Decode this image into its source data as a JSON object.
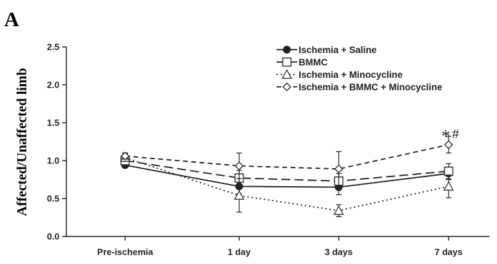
{
  "panel_label": "A",
  "chart_data": {
    "type": "line",
    "title": "",
    "xlabel": "",
    "ylabel": "Affected/Unaffected limb",
    "categories": [
      "Pre-ischemia",
      "1 day",
      "3 days",
      "7 days"
    ],
    "ylim": [
      0,
      2.5
    ],
    "yticks": [
      "0.0",
      "0.5",
      "1.0",
      "1.5",
      "2.0",
      "2.5"
    ],
    "grid": false,
    "legend_position": "top-right",
    "series": [
      {
        "name": "Ischemia + Saline",
        "marker": "filled-circle",
        "line": "solid",
        "values": [
          0.94,
          0.66,
          0.65,
          0.83
        ],
        "errors": [
          0.03,
          0.1,
          0.1,
          0.08
        ]
      },
      {
        "name": "BMMC",
        "marker": "open-square",
        "line": "long-dash",
        "values": [
          1.0,
          0.77,
          0.73,
          0.86
        ],
        "errors": [
          0.04,
          0.1,
          0.1,
          0.1
        ]
      },
      {
        "name": "Ischemia + Minocycline",
        "marker": "open-triangle",
        "line": "dotted",
        "values": [
          1.04,
          0.54,
          0.34,
          0.66
        ],
        "errors": [
          0.05,
          0.22,
          0.08,
          0.15
        ]
      },
      {
        "name": "Ischemia + BMMC + Minocycline",
        "marker": "open-diamond",
        "line": "short-dash",
        "values": [
          1.06,
          0.93,
          0.89,
          1.21
        ],
        "errors": [
          0.04,
          0.17,
          0.23,
          0.11
        ]
      }
    ],
    "legend_labels": [
      "Ischemia + Saline",
      "BMMC",
      "Ischemia + Minocycline",
      "Ischemia + BMMC + Minocycline"
    ],
    "annotations": [
      {
        "category": "7 days",
        "y": 1.37,
        "star": "*",
        "hash": "#"
      }
    ],
    "color": "#222222"
  }
}
